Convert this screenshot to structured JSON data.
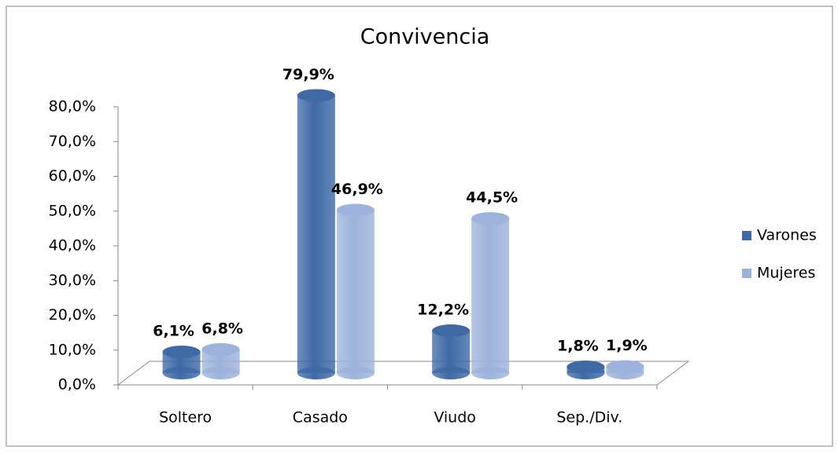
{
  "chart_data": {
    "type": "bar3d",
    "title": "Convivencia",
    "categories": [
      "Soltero",
      "Casado",
      "Viudo",
      "Sep./Div."
    ],
    "series": [
      {
        "name": "Varones",
        "color": "#3f6aa6",
        "values": [
          6.1,
          79.9,
          12.2,
          1.8
        ],
        "value_labels": [
          "6,1%",
          "79,9%",
          "12,2%",
          "1,8%"
        ]
      },
      {
        "name": "Mujeres",
        "color": "#9db3db",
        "values": [
          6.8,
          46.9,
          44.5,
          1.9
        ],
        "value_labels": [
          "6,8%",
          "46,9%",
          "44,5%",
          "1,9%"
        ]
      }
    ],
    "ylim": [
      0,
      80
    ],
    "yticks": [
      {
        "value": 0,
        "label": "0,0%"
      },
      {
        "value": 10,
        "label": "10,0%"
      },
      {
        "value": 20,
        "label": "20,0%"
      },
      {
        "value": 30,
        "label": "30,0%"
      },
      {
        "value": 40,
        "label": "40,0%"
      },
      {
        "value": 50,
        "label": "50,0%"
      },
      {
        "value": 60,
        "label": "60,0%"
      },
      {
        "value": 70,
        "label": "70,0%"
      },
      {
        "value": 80,
        "label": "80,0%"
      }
    ],
    "legend": "right"
  }
}
